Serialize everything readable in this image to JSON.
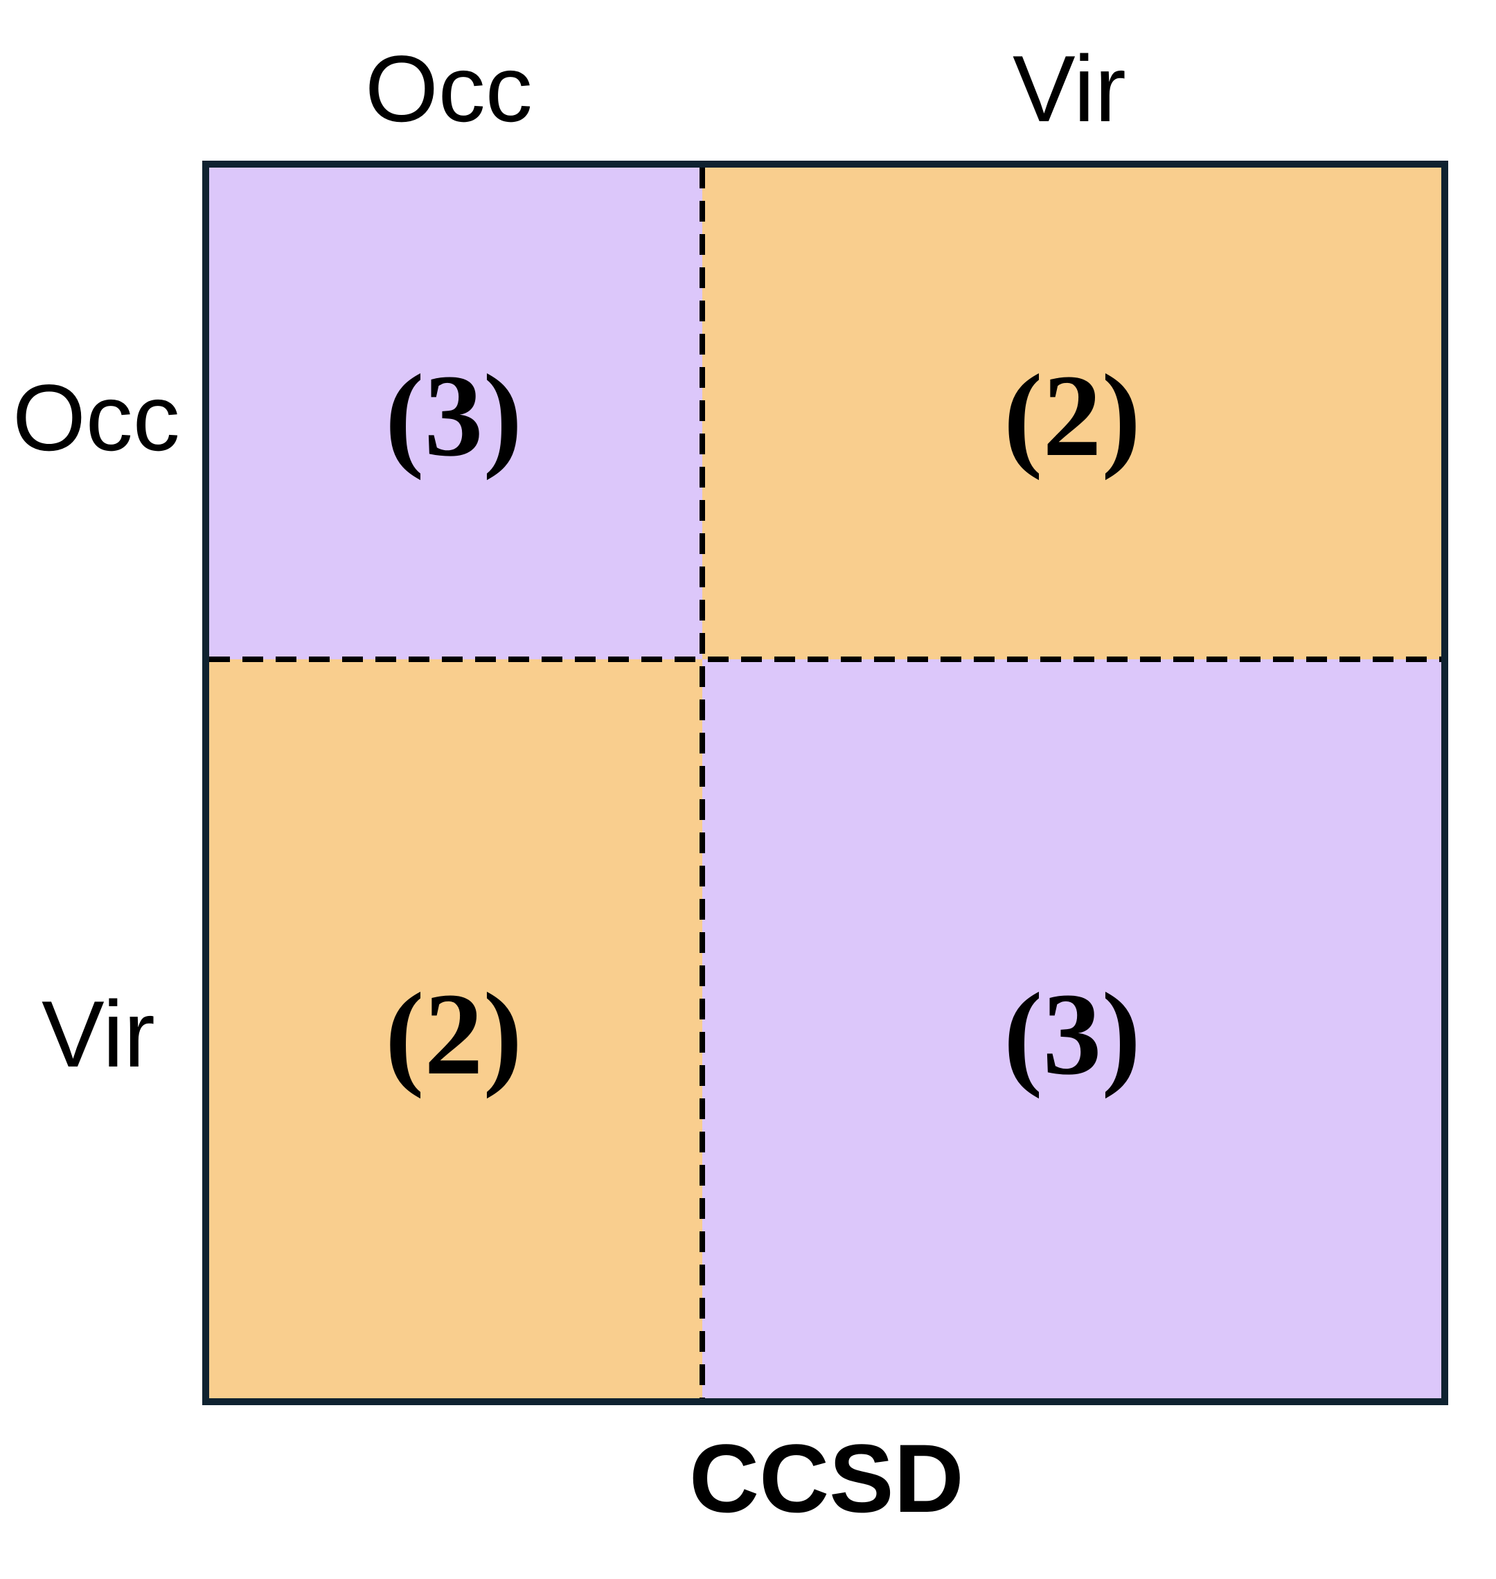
{
  "title": "CCSD",
  "columns": [
    {
      "label": "Occ"
    },
    {
      "label": "Vir"
    }
  ],
  "rows": [
    {
      "label": "Occ"
    },
    {
      "label": "Vir"
    }
  ],
  "blocks": [
    {
      "row": "Occ",
      "col": "Occ",
      "label": "(3)",
      "color": "#dcc7fa"
    },
    {
      "row": "Occ",
      "col": "Vir",
      "label": "(2)",
      "color": "#f9ce8e"
    },
    {
      "row": "Vir",
      "col": "Occ",
      "label": "(2)",
      "color": "#f9ce8e"
    },
    {
      "row": "Vir",
      "col": "Vir",
      "label": "(3)",
      "color": "#dcc7fa"
    }
  ],
  "colors": {
    "border": "#0f2230",
    "divider": "#000000"
  }
}
